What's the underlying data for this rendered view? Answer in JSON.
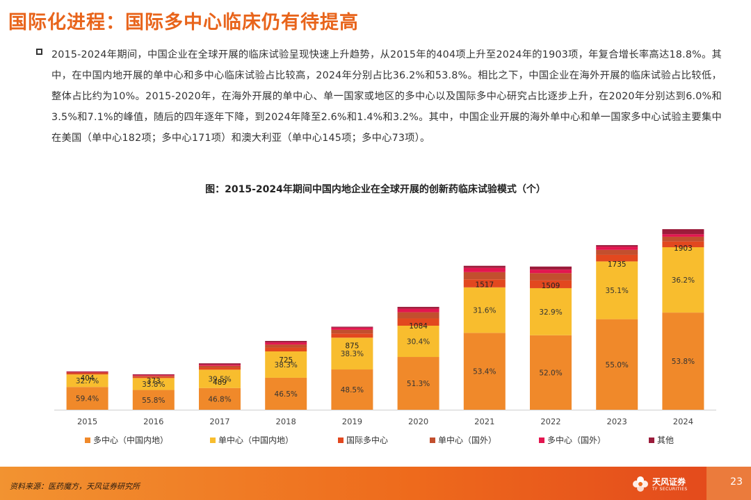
{
  "page": {
    "title": "国际化进程：国际多中心临床仍有待提高",
    "paragraph": "2015-2024年期间，中国企业在全球开展的临床试验呈现快速上升趋势，从2015年的404项上升至2024年的1903项，年复合增长率高达18.8%。其中，在中国内地开展的单中心和多中心临床试验占比较高，2024年分别占比36.2%和53.8%。相比之下，中国企业在海外开展的临床试验占比较低，整体占比约为10%。2015-2020年，在海外开展的单中心、单一国家或地区的多中心以及国际多中心研究占比逐步上升，在2020年分别达到6.0%和3.5%和7.1%的峰值，随后的四年逐年下降，到2024年降至2.6%和1.4%和3.2%。其中，中国企业开展的海外单中心和单一国家多中心试验主要集中在美国（单中心182项；多中心171项）和澳大利亚（单中心145项；多中心73项）。",
    "chart_title": "图：2015-2024年期间中国内地企业在全球开展的创新药临床试验模式（个）",
    "source": "资料来源：医药魔方，天风证券研究所",
    "logo_name": "天风证券",
    "logo_sub": "TF SECURITIES",
    "page_number": "23"
  },
  "colors": {
    "title": "#e8641b",
    "multi_mainland": "#f0892a",
    "single_mainland": "#f8bd2e",
    "intl_multi": "#e2481f",
    "single_overseas": "#c24f2e",
    "multi_overseas": "#e3154f",
    "other": "#9b1c3b"
  },
  "chart_data": {
    "type": "bar",
    "stacked": true,
    "categories": [
      "2015",
      "2016",
      "2017",
      "2018",
      "2019",
      "2020",
      "2021",
      "2022",
      "2023",
      "2024"
    ],
    "totals": [
      404,
      373,
      489,
      725,
      875,
      1084,
      1517,
      1509,
      1735,
      1903
    ],
    "total_labels": [
      "404",
      "373",
      "489",
      "725",
      "875",
      "1084",
      "1517",
      "1509",
      "1735",
      "1903"
    ],
    "series": [
      {
        "name": "多中心（中国内地）",
        "color": "#f0892a",
        "pct": [
          59.4,
          55.8,
          46.8,
          46.5,
          48.5,
          51.3,
          53.4,
          52.0,
          55.0,
          53.8
        ],
        "labels": [
          "59.4%",
          "55.8%",
          "46.8%",
          "46.5%",
          "48.5%",
          "51.3%",
          "53.4%",
          "52.0%",
          "55.0%",
          "53.8%"
        ]
      },
      {
        "name": "单中心（中国内地）",
        "color": "#f8bd2e",
        "pct": [
          32.7,
          33.8,
          39.5,
          38.3,
          38.3,
          30.4,
          31.6,
          32.9,
          35.1,
          36.2
        ],
        "labels": [
          "32.7%",
          "33.8%",
          "39.5%",
          "38.3%",
          "38.3%",
          "30.4%",
          "31.6%",
          "32.9%",
          "35.1%",
          "36.2%"
        ]
      },
      {
        "name": "国际多中心",
        "color": "#e2481f",
        "pct": [
          3.0,
          3.3,
          4.3,
          5.5,
          5.0,
          7.1,
          5.6,
          5.5,
          4.0,
          3.2
        ],
        "labels": []
      },
      {
        "name": "单中心（国外）",
        "color": "#c24f2e",
        "pct": [
          2.0,
          3.0,
          4.0,
          4.5,
          4.5,
          6.0,
          5.0,
          5.0,
          3.0,
          2.6
        ],
        "labels": []
      },
      {
        "name": "多中心（国外）",
        "color": "#e3154f",
        "pct": [
          1.5,
          2.0,
          2.5,
          3.0,
          2.5,
          3.5,
          3.0,
          2.5,
          2.0,
          1.4
        ],
        "labels": []
      },
      {
        "name": "其他",
        "color": "#9b1c3b",
        "pct": [
          1.4,
          2.1,
          2.9,
          2.2,
          1.2,
          1.7,
          1.4,
          2.1,
          0.9,
          2.8
        ],
        "labels": []
      }
    ]
  }
}
